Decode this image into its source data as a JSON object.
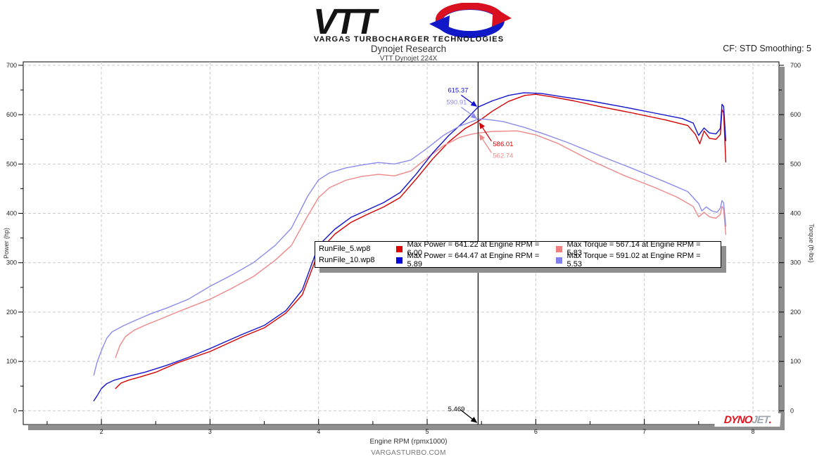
{
  "header": {
    "logo": {
      "brand": "VTT",
      "tagline": "VARGAS TURBOCHARGER TECHNOLOGIES",
      "swirl_red": "#d81020",
      "swirl_blue": "#1018c8"
    },
    "title": "Dynojet Research",
    "subtitle": "VTT Dynojet 224X",
    "smoothing": "CF: STD Smoothing: 5"
  },
  "footer": {
    "site": "VARGASTURBO.COM"
  },
  "branding": {
    "dynojet_dyno": "DYNO",
    "dynojet_jet": "JET",
    "dynojet_dot": "."
  },
  "chart_data": {
    "type": "line",
    "title": "Dynojet Research",
    "subtitle": "VTT Dynojet 224X",
    "xlabel": "Engine RPM (rpmx1000)",
    "ylabel_left": "Power (hp)",
    "ylabel_right": "Torque (ft-lbs)",
    "x_range": [
      1.28,
      8.24
    ],
    "x_major_ticks": [
      2,
      3,
      4,
      5,
      6,
      7,
      8
    ],
    "x_minor_step": 0.5,
    "y_range": [
      -28,
      707
    ],
    "y_major_ticks": [
      0,
      100,
      200,
      300,
      400,
      500,
      600,
      700
    ],
    "y_minor_step": 50,
    "grid": "dashed",
    "legend_position": "center",
    "legend": {
      "rows": [
        {
          "file": "RunFile_5.wp8",
          "power_color": "#dd0000",
          "power_label": "Max Power = 641.22 at Engine RPM = 6.00",
          "torque_color": "#f08080",
          "torque_label": "Max Torque = 567.14 at Engine RPM = 5.83"
        },
        {
          "file": "RunFile_10.wp8",
          "power_color": "#0000dd",
          "power_label": "Max Power = 644.47 at Engine RPM = 5.89",
          "torque_color": "#8080f0",
          "torque_label": "Max Torque = 591.02 at Engine RPM = 5.53"
        }
      ]
    },
    "cursor": {
      "rpm": 5.469,
      "label": "5.469",
      "readouts": [
        {
          "label": "615.37",
          "value": 615.37,
          "series": "RunFile_10.wp8 Power",
          "color": "#1414cc",
          "side": "left"
        },
        {
          "label": "590.91",
          "value": 590.91,
          "series": "RunFile_10.wp8 Torque",
          "color": "#8c8cec",
          "side": "left"
        },
        {
          "label": "586.01",
          "value": 586.01,
          "series": "RunFile_5.wp8 Power",
          "color": "#d40000",
          "side": "right"
        },
        {
          "label": "562.74",
          "value": 562.74,
          "series": "RunFile_5.wp8 Torque",
          "color": "#f08888",
          "side": "right"
        }
      ]
    },
    "series": [
      {
        "name": "RunFile_5.wp8 Power",
        "unit": "hp",
        "color": "#d40000",
        "points": [
          [
            2.13,
            45
          ],
          [
            2.18,
            56
          ],
          [
            2.25,
            62
          ],
          [
            2.35,
            68
          ],
          [
            2.5,
            78
          ],
          [
            2.7,
            97
          ],
          [
            3.0,
            120
          ],
          [
            3.3,
            150
          ],
          [
            3.5,
            168
          ],
          [
            3.7,
            198
          ],
          [
            3.85,
            235
          ],
          [
            4.0,
            322
          ],
          [
            4.15,
            358
          ],
          [
            4.3,
            382
          ],
          [
            4.45,
            398
          ],
          [
            4.6,
            413
          ],
          [
            4.75,
            432
          ],
          [
            4.9,
            470
          ],
          [
            5.05,
            510
          ],
          [
            5.2,
            545
          ],
          [
            5.35,
            572
          ],
          [
            5.469,
            586.01
          ],
          [
            5.6,
            607
          ],
          [
            5.75,
            627
          ],
          [
            5.9,
            639
          ],
          [
            6.0,
            641.22
          ],
          [
            6.15,
            636
          ],
          [
            6.35,
            628
          ],
          [
            6.6,
            616
          ],
          [
            6.9,
            603
          ],
          [
            7.2,
            589
          ],
          [
            7.4,
            578
          ],
          [
            7.47,
            560
          ],
          [
            7.51,
            541
          ],
          [
            7.55,
            567
          ],
          [
            7.6,
            552
          ],
          [
            7.66,
            550
          ],
          [
            7.7,
            560
          ],
          [
            7.715,
            610
          ],
          [
            7.73,
            604
          ],
          [
            7.75,
            504
          ]
        ]
      },
      {
        "name": "RunFile_5.wp8 Torque",
        "unit": "ft-lbs",
        "color": "#f08888",
        "points": [
          [
            2.13,
            108
          ],
          [
            2.17,
            132
          ],
          [
            2.22,
            150
          ],
          [
            2.3,
            163
          ],
          [
            2.4,
            173
          ],
          [
            2.5,
            182
          ],
          [
            2.7,
            200
          ],
          [
            3.0,
            226
          ],
          [
            3.2,
            248
          ],
          [
            3.4,
            272
          ],
          [
            3.6,
            305
          ],
          [
            3.75,
            335
          ],
          [
            3.9,
            395
          ],
          [
            4.0,
            432
          ],
          [
            4.1,
            452
          ],
          [
            4.25,
            467
          ],
          [
            4.4,
            475
          ],
          [
            4.55,
            479
          ],
          [
            4.7,
            476
          ],
          [
            4.85,
            486
          ],
          [
            5.0,
            512
          ],
          [
            5.15,
            537
          ],
          [
            5.3,
            554
          ],
          [
            5.4,
            560
          ],
          [
            5.469,
            562.74
          ],
          [
            5.6,
            566
          ],
          [
            5.83,
            567.14
          ],
          [
            6.0,
            559
          ],
          [
            6.2,
            542
          ],
          [
            6.5,
            508
          ],
          [
            6.8,
            478
          ],
          [
            7.1,
            452
          ],
          [
            7.3,
            433
          ],
          [
            7.45,
            414
          ],
          [
            7.5,
            393
          ],
          [
            7.55,
            402
          ],
          [
            7.6,
            393
          ],
          [
            7.66,
            390
          ],
          [
            7.7,
            398
          ],
          [
            7.715,
            414
          ],
          [
            7.73,
            409
          ],
          [
            7.75,
            357
          ]
        ]
      },
      {
        "name": "RunFile_10.wp8 Power",
        "unit": "hp",
        "color": "#1414cc",
        "points": [
          [
            1.93,
            20
          ],
          [
            1.96,
            30
          ],
          [
            2.0,
            45
          ],
          [
            2.05,
            55
          ],
          [
            2.12,
            62
          ],
          [
            2.25,
            70
          ],
          [
            2.4,
            78
          ],
          [
            2.6,
            92
          ],
          [
            2.8,
            108
          ],
          [
            3.0,
            126
          ],
          [
            3.3,
            155
          ],
          [
            3.5,
            173
          ],
          [
            3.7,
            203
          ],
          [
            3.85,
            245
          ],
          [
            4.0,
            335
          ],
          [
            4.15,
            368
          ],
          [
            4.3,
            392
          ],
          [
            4.45,
            407
          ],
          [
            4.6,
            422
          ],
          [
            4.75,
            442
          ],
          [
            4.9,
            480
          ],
          [
            5.05,
            522
          ],
          [
            5.2,
            558
          ],
          [
            5.35,
            588
          ],
          [
            5.469,
            615.37
          ],
          [
            5.6,
            628
          ],
          [
            5.75,
            639
          ],
          [
            5.89,
            644.47
          ],
          [
            6.05,
            643
          ],
          [
            6.25,
            636
          ],
          [
            6.5,
            628
          ],
          [
            6.8,
            616
          ],
          [
            7.1,
            603
          ],
          [
            7.35,
            592
          ],
          [
            7.45,
            583
          ],
          [
            7.5,
            558
          ],
          [
            7.55,
            573
          ],
          [
            7.6,
            563
          ],
          [
            7.66,
            561
          ],
          [
            7.7,
            572
          ],
          [
            7.715,
            621
          ],
          [
            7.73,
            617
          ],
          [
            7.75,
            547
          ]
        ]
      },
      {
        "name": "RunFile_10.wp8 Torque",
        "unit": "ft-lbs",
        "color": "#8c8cec",
        "points": [
          [
            1.93,
            72
          ],
          [
            1.96,
            98
          ],
          [
            2.0,
            122
          ],
          [
            2.05,
            147
          ],
          [
            2.1,
            160
          ],
          [
            2.2,
            172
          ],
          [
            2.3,
            182
          ],
          [
            2.45,
            196
          ],
          [
            2.6,
            208
          ],
          [
            2.8,
            226
          ],
          [
            3.0,
            252
          ],
          [
            3.2,
            275
          ],
          [
            3.4,
            300
          ],
          [
            3.6,
            335
          ],
          [
            3.75,
            370
          ],
          [
            3.9,
            435
          ],
          [
            4.0,
            468
          ],
          [
            4.1,
            482
          ],
          [
            4.25,
            492
          ],
          [
            4.4,
            498
          ],
          [
            4.55,
            503
          ],
          [
            4.7,
            500
          ],
          [
            4.85,
            508
          ],
          [
            5.0,
            532
          ],
          [
            5.15,
            558
          ],
          [
            5.3,
            577
          ],
          [
            5.4,
            585
          ],
          [
            5.469,
            590.91
          ],
          [
            5.53,
            591.02
          ],
          [
            5.7,
            586
          ],
          [
            5.9,
            574
          ],
          [
            6.1,
            559
          ],
          [
            6.3,
            543
          ],
          [
            6.6,
            516
          ],
          [
            6.9,
            490
          ],
          [
            7.2,
            463
          ],
          [
            7.4,
            444
          ],
          [
            7.5,
            420
          ],
          [
            7.53,
            405
          ],
          [
            7.57,
            413
          ],
          [
            7.62,
            405
          ],
          [
            7.67,
            402
          ],
          [
            7.7,
            411
          ],
          [
            7.715,
            426
          ],
          [
            7.73,
            421
          ],
          [
            7.75,
            374
          ]
        ]
      }
    ]
  }
}
